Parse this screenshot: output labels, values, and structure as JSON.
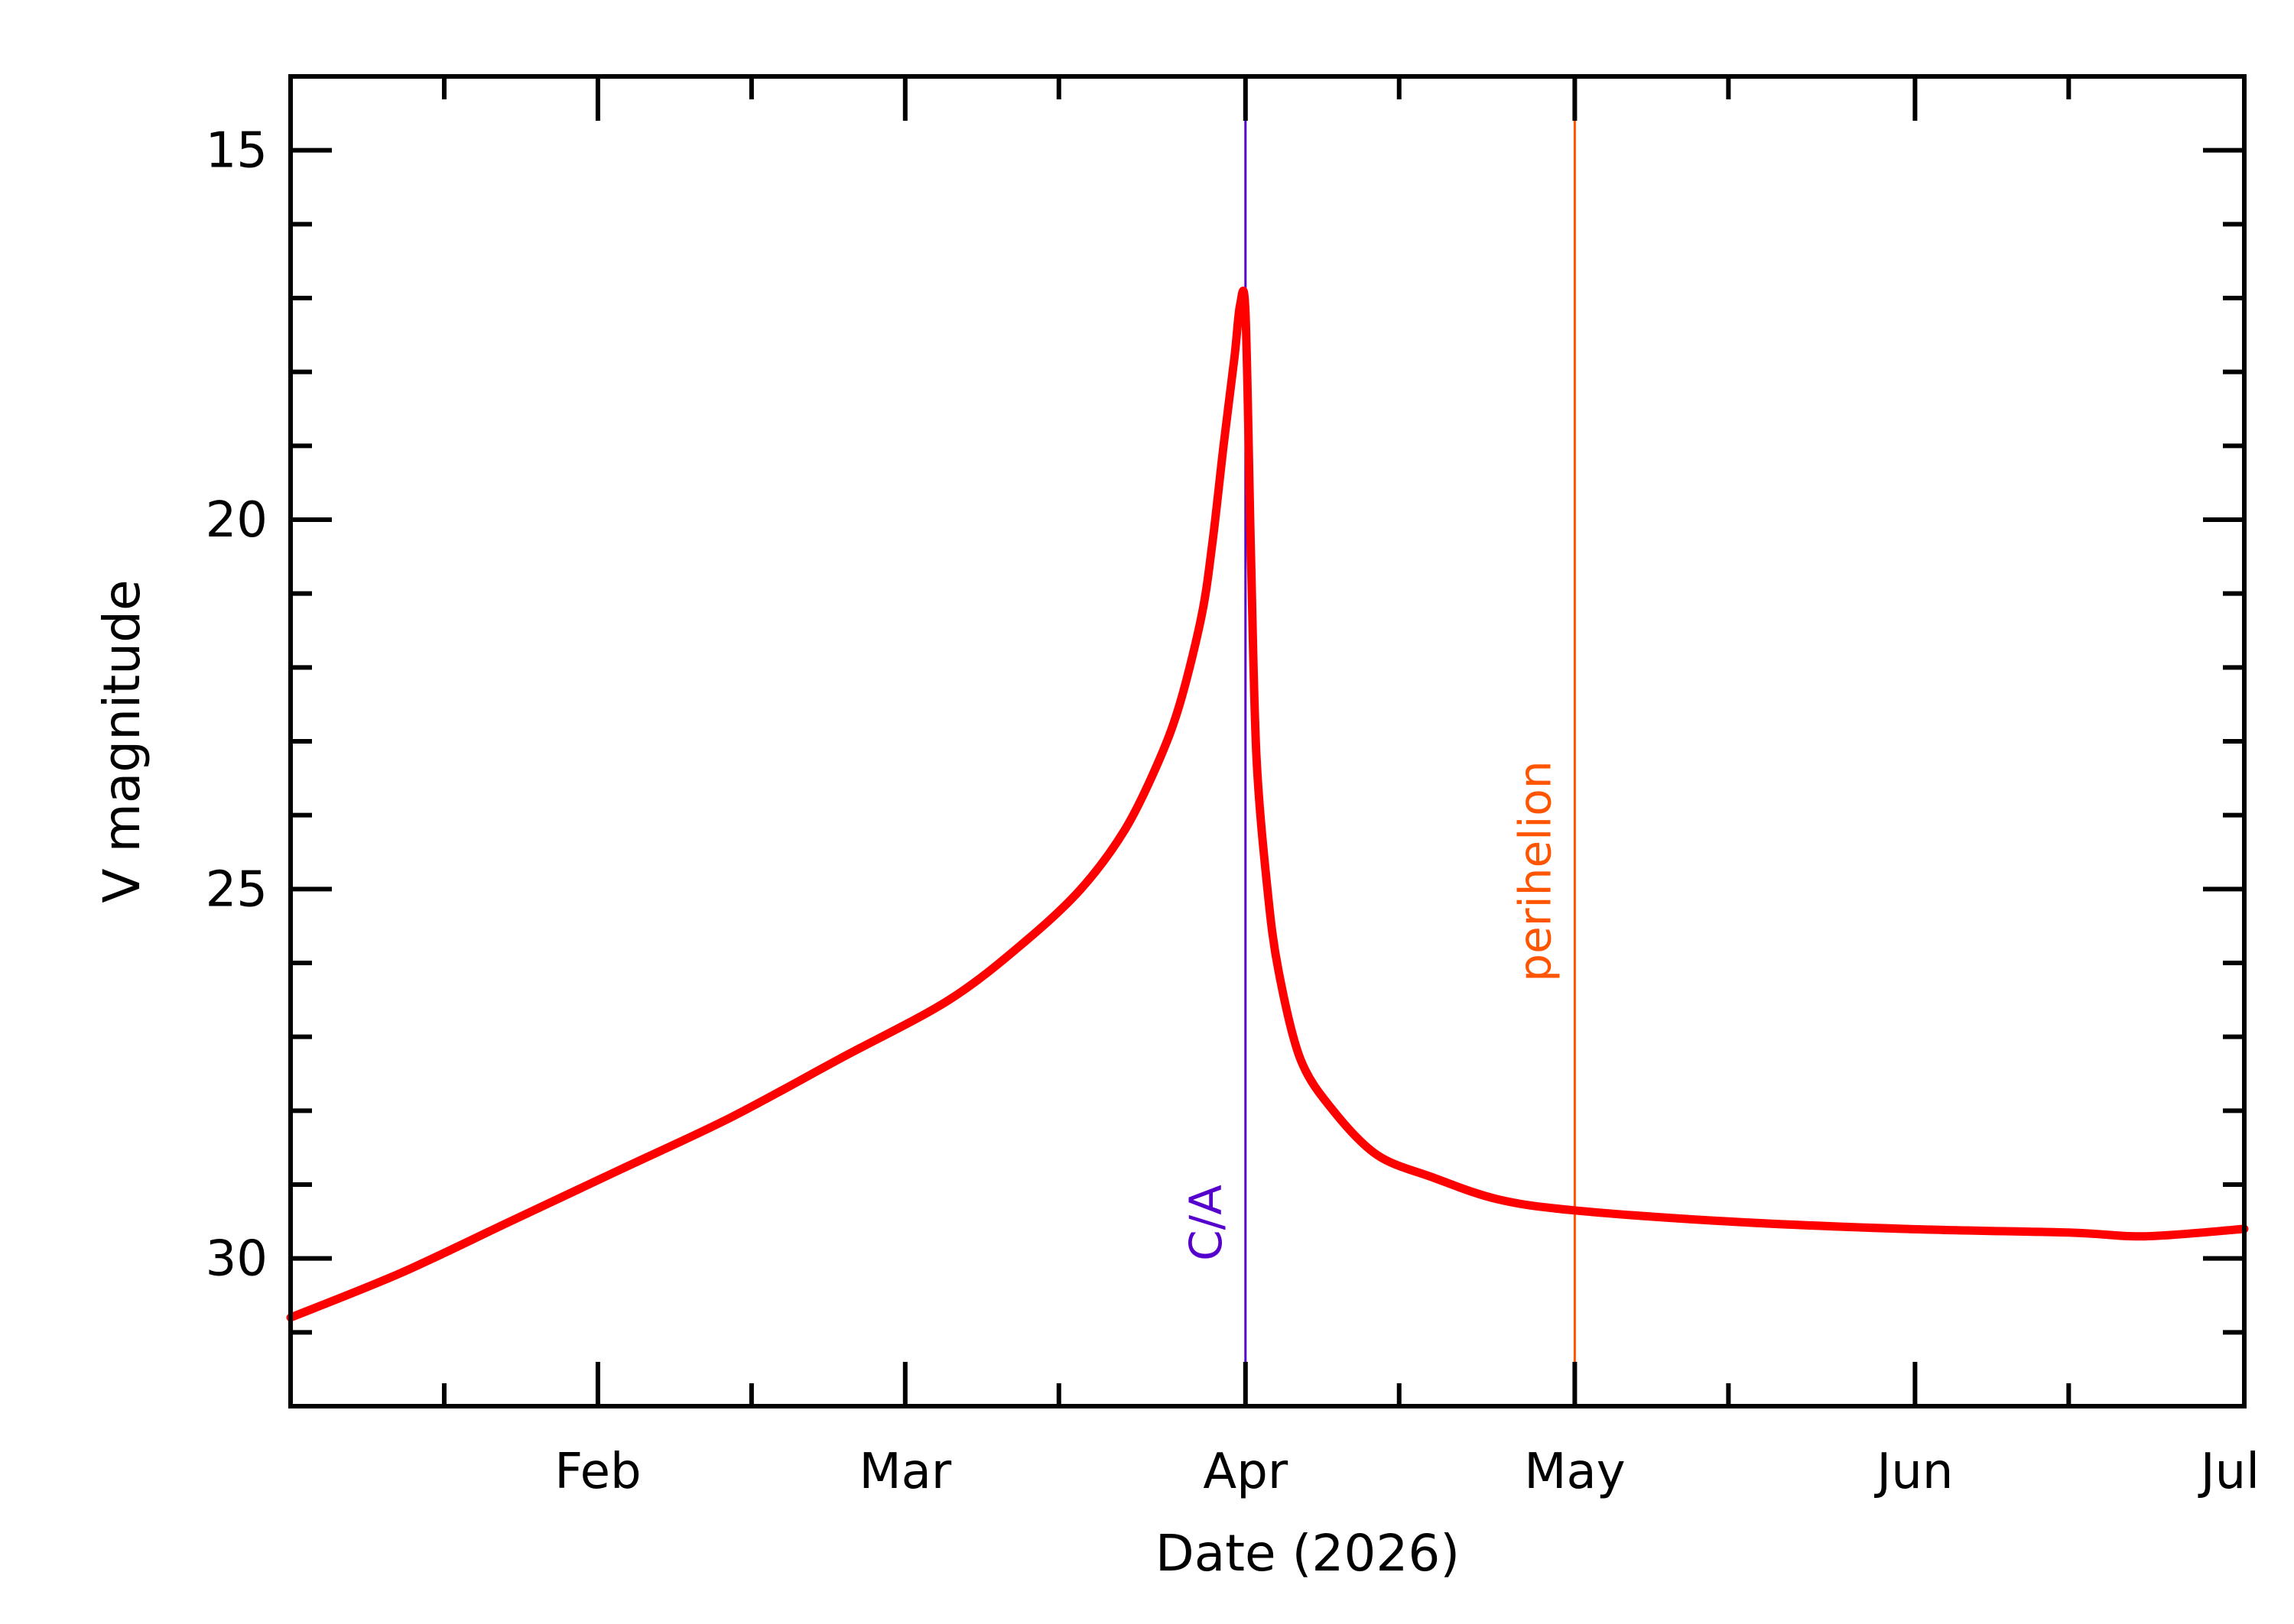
{
  "chart_data": {
    "type": "line",
    "xlabel": "Date (2026)",
    "ylabel": "V magnitude",
    "y_inverted": true,
    "grid": false,
    "xlim": [
      "2026-01-04",
      "2026-07-01"
    ],
    "ylim": [
      14,
      32
    ],
    "x_ticks": [
      {
        "date": "2026-02-01",
        "label": "Feb"
      },
      {
        "date": "2026-03-01",
        "label": "Mar"
      },
      {
        "date": "2026-04-01",
        "label": "Apr"
      },
      {
        "date": "2026-05-01",
        "label": "May"
      },
      {
        "date": "2026-06-01",
        "label": "Jun"
      },
      {
        "date": "2026-07-01",
        "label": "Jul"
      }
    ],
    "x_minor_ticks": [
      "2026-01-18",
      "2026-02-15",
      "2026-03-15",
      "2026-04-15",
      "2026-05-15",
      "2026-06-15"
    ],
    "y_major_ticks": [
      15,
      20,
      25,
      30
    ],
    "y_tick_labels": [
      "15",
      "20",
      "25",
      "30"
    ],
    "y_minor_ticks": [
      16,
      17,
      18,
      19,
      21,
      22,
      23,
      24,
      26,
      27,
      28,
      29,
      31
    ],
    "series": [
      {
        "color": "#ff0000",
        "points": [
          [
            "2026-01-04",
            30.8
          ],
          [
            "2026-01-14",
            30.2
          ],
          [
            "2026-01-24",
            29.5
          ],
          [
            "2026-02-03",
            28.8
          ],
          [
            "2026-02-13",
            28.1
          ],
          [
            "2026-02-23",
            27.3
          ],
          [
            "2026-03-05",
            26.5
          ],
          [
            "2026-03-12",
            25.7
          ],
          [
            "2026-03-17",
            25.0
          ],
          [
            "2026-03-21",
            24.2
          ],
          [
            "2026-03-24",
            23.3
          ],
          [
            "2026-03-26",
            22.5
          ],
          [
            "2026-03-28",
            21.3
          ],
          [
            "2026-03-29",
            20.3
          ],
          [
            "2026-03-30",
            19.0
          ],
          [
            "2026-03-31",
            17.8
          ],
          [
            "2026-03-31T12:00",
            17.1
          ],
          [
            "2026-04-01",
            17.2
          ],
          [
            "2026-04-01T12:00",
            20.5
          ],
          [
            "2026-04-02",
            23.2
          ],
          [
            "2026-04-03",
            25.0
          ],
          [
            "2026-04-04",
            26.1
          ],
          [
            "2026-04-06",
            27.3
          ],
          [
            "2026-04-09",
            28.0
          ],
          [
            "2026-04-13",
            28.6
          ],
          [
            "2026-04-18",
            28.9
          ],
          [
            "2026-04-24",
            29.2
          ],
          [
            "2026-05-01",
            29.35
          ],
          [
            "2026-05-15",
            29.5
          ],
          [
            "2026-05-31",
            29.6
          ],
          [
            "2026-06-15",
            29.65
          ],
          [
            "2026-06-22",
            29.7
          ],
          [
            "2026-07-01",
            29.6
          ]
        ]
      }
    ],
    "markers": [
      {
        "date": "2026-04-01",
        "label": "C/A",
        "color": "#5500cc"
      },
      {
        "date": "2026-05-01",
        "label": "perihelion",
        "color": "#ff5500"
      }
    ],
    "axis_color": "#000000"
  }
}
